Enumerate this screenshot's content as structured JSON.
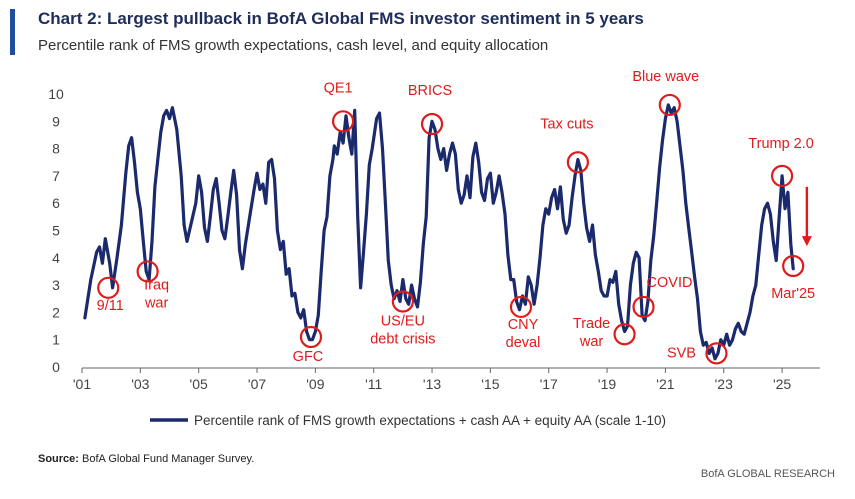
{
  "header": {
    "title": "Chart 2: Largest pullback in BofA Global FMS investor sentiment in 5 years",
    "subtitle": "Percentile rank of FMS growth expectations, cash level, and equity allocation"
  },
  "footer": {
    "source_label": "Source:",
    "source_text": "BofA Global Fund Manager Survey.",
    "brand": "BofA GLOBAL RESEARCH"
  },
  "colors": {
    "series": "#1a2a6c",
    "annotation": "#e01b1b",
    "accent_bar": "#1f4e9c"
  },
  "chart_data": {
    "type": "line",
    "title": "Chart 2: Largest pullback in BofA Global FMS investor sentiment in 5 years",
    "subtitle": "Percentile rank of FMS growth expectations, cash level, and equity allocation",
    "xlim": [
      2001.0,
      2026.3
    ],
    "ylim": [
      0,
      10
    ],
    "grid": false,
    "legend_position": "bottom",
    "x_tick_values": [
      2001,
      2003,
      2005,
      2007,
      2009,
      2011,
      2013,
      2015,
      2017,
      2019,
      2021,
      2023,
      2025
    ],
    "x_tick_labels": [
      "'01",
      "'03",
      "'05",
      "'07",
      "'09",
      "'11",
      "'13",
      "'15",
      "'17",
      "'19",
      "'21",
      "'23",
      "'25"
    ],
    "y_ticks": [
      0,
      1,
      2,
      3,
      4,
      5,
      6,
      7,
      8,
      9,
      10
    ],
    "series": [
      {
        "name": "Percentile rank of FMS growth expectations + cash AA + equity AA (scale 1-10)",
        "points": [
          [
            2001.1,
            1.8
          ],
          [
            2001.3,
            3.2
          ],
          [
            2001.5,
            4.2
          ],
          [
            2001.6,
            4.4
          ],
          [
            2001.7,
            3.8
          ],
          [
            2001.8,
            4.7
          ],
          [
            2001.95,
            3.8
          ],
          [
            2002.05,
            2.9
          ],
          [
            2002.2,
            4.0
          ],
          [
            2002.35,
            5.2
          ],
          [
            2002.5,
            7.1
          ],
          [
            2002.6,
            8.1
          ],
          [
            2002.7,
            8.4
          ],
          [
            2002.8,
            7.5
          ],
          [
            2002.9,
            6.4
          ],
          [
            2003.0,
            5.8
          ],
          [
            2003.1,
            4.6
          ],
          [
            2003.2,
            3.5
          ],
          [
            2003.3,
            3.2
          ],
          [
            2003.4,
            4.6
          ],
          [
            2003.5,
            6.6
          ],
          [
            2003.6,
            7.6
          ],
          [
            2003.7,
            8.6
          ],
          [
            2003.8,
            9.2
          ],
          [
            2003.9,
            9.4
          ],
          [
            2004.0,
            9.1
          ],
          [
            2004.1,
            9.5
          ],
          [
            2004.25,
            8.7
          ],
          [
            2004.4,
            7.0
          ],
          [
            2004.5,
            5.2
          ],
          [
            2004.6,
            4.6
          ],
          [
            2004.75,
            5.3
          ],
          [
            2004.9,
            6.0
          ],
          [
            2005.0,
            7.0
          ],
          [
            2005.1,
            6.4
          ],
          [
            2005.2,
            5.1
          ],
          [
            2005.3,
            4.6
          ],
          [
            2005.4,
            5.5
          ],
          [
            2005.5,
            6.5
          ],
          [
            2005.6,
            6.9
          ],
          [
            2005.7,
            6.0
          ],
          [
            2005.8,
            5.0
          ],
          [
            2005.9,
            4.7
          ],
          [
            2006.0,
            5.5
          ],
          [
            2006.1,
            6.4
          ],
          [
            2006.2,
            7.2
          ],
          [
            2006.3,
            6.3
          ],
          [
            2006.4,
            4.3
          ],
          [
            2006.5,
            3.6
          ],
          [
            2006.6,
            4.5
          ],
          [
            2006.75,
            5.5
          ],
          [
            2006.9,
            6.5
          ],
          [
            2007.0,
            7.1
          ],
          [
            2007.1,
            6.5
          ],
          [
            2007.2,
            6.7
          ],
          [
            2007.3,
            6.0
          ],
          [
            2007.4,
            7.5
          ],
          [
            2007.5,
            7.6
          ],
          [
            2007.6,
            6.9
          ],
          [
            2007.7,
            5.0
          ],
          [
            2007.8,
            4.3
          ],
          [
            2007.9,
            4.6
          ],
          [
            2008.0,
            3.4
          ],
          [
            2008.1,
            3.6
          ],
          [
            2008.2,
            2.6
          ],
          [
            2008.3,
            2.7
          ],
          [
            2008.4,
            2.0
          ],
          [
            2008.5,
            1.8
          ],
          [
            2008.6,
            2.1
          ],
          [
            2008.7,
            1.3
          ],
          [
            2008.8,
            1.0
          ],
          [
            2008.9,
            1.0
          ],
          [
            2009.0,
            1.3
          ],
          [
            2009.1,
            1.9
          ],
          [
            2009.2,
            3.5
          ],
          [
            2009.3,
            5.0
          ],
          [
            2009.4,
            5.5
          ],
          [
            2009.5,
            7.0
          ],
          [
            2009.6,
            7.6
          ],
          [
            2009.65,
            8.1
          ],
          [
            2009.75,
            7.8
          ],
          [
            2009.85,
            8.6
          ],
          [
            2009.95,
            8.2
          ],
          [
            2010.05,
            9.2
          ],
          [
            2010.15,
            8.4
          ],
          [
            2010.25,
            7.8
          ],
          [
            2010.35,
            9.4
          ],
          [
            2010.45,
            5.5
          ],
          [
            2010.55,
            2.9
          ],
          [
            2010.65,
            4.2
          ],
          [
            2010.75,
            5.6
          ],
          [
            2010.85,
            7.4
          ],
          [
            2010.95,
            8.0
          ],
          [
            2011.1,
            9.1
          ],
          [
            2011.2,
            9.3
          ],
          [
            2011.3,
            8.0
          ],
          [
            2011.4,
            6.0
          ],
          [
            2011.5,
            3.9
          ],
          [
            2011.6,
            3.0
          ],
          [
            2011.7,
            2.5
          ],
          [
            2011.8,
            2.8
          ],
          [
            2011.9,
            2.4
          ],
          [
            2012.0,
            3.2
          ],
          [
            2012.1,
            2.5
          ],
          [
            2012.2,
            2.3
          ],
          [
            2012.3,
            3.0
          ],
          [
            2012.4,
            2.5
          ],
          [
            2012.5,
            2.2
          ],
          [
            2012.6,
            3.1
          ],
          [
            2012.7,
            4.5
          ],
          [
            2012.8,
            5.5
          ],
          [
            2012.9,
            8.4
          ],
          [
            2013.0,
            9.0
          ],
          [
            2013.1,
            8.7
          ],
          [
            2013.2,
            8.0
          ],
          [
            2013.3,
            7.6
          ],
          [
            2013.4,
            8.0
          ],
          [
            2013.5,
            7.2
          ],
          [
            2013.6,
            7.8
          ],
          [
            2013.7,
            8.2
          ],
          [
            2013.8,
            7.8
          ],
          [
            2013.9,
            6.5
          ],
          [
            2014.0,
            6.0
          ],
          [
            2014.1,
            6.3
          ],
          [
            2014.2,
            7.0
          ],
          [
            2014.3,
            6.2
          ],
          [
            2014.4,
            7.7
          ],
          [
            2014.5,
            8.2
          ],
          [
            2014.6,
            7.5
          ],
          [
            2014.7,
            6.4
          ],
          [
            2014.8,
            6.1
          ],
          [
            2014.9,
            6.9
          ],
          [
            2015.0,
            7.1
          ],
          [
            2015.1,
            6.0
          ],
          [
            2015.2,
            6.4
          ],
          [
            2015.3,
            7.0
          ],
          [
            2015.4,
            6.4
          ],
          [
            2015.5,
            5.6
          ],
          [
            2015.6,
            4.1
          ],
          [
            2015.7,
            3.2
          ],
          [
            2015.8,
            3.2
          ],
          [
            2015.9,
            2.4
          ],
          [
            2016.0,
            2.1
          ],
          [
            2016.1,
            2.6
          ],
          [
            2016.2,
            2.3
          ],
          [
            2016.3,
            3.3
          ],
          [
            2016.4,
            3.0
          ],
          [
            2016.5,
            2.3
          ],
          [
            2016.6,
            3.0
          ],
          [
            2016.7,
            4.0
          ],
          [
            2016.8,
            5.2
          ],
          [
            2016.9,
            5.8
          ],
          [
            2017.0,
            5.6
          ],
          [
            2017.1,
            6.2
          ],
          [
            2017.2,
            6.5
          ],
          [
            2017.3,
            5.8
          ],
          [
            2017.4,
            6.6
          ],
          [
            2017.5,
            5.4
          ],
          [
            2017.6,
            4.9
          ],
          [
            2017.7,
            5.2
          ],
          [
            2017.8,
            6.2
          ],
          [
            2017.9,
            7.0
          ],
          [
            2018.0,
            7.6
          ],
          [
            2018.1,
            7.2
          ],
          [
            2018.2,
            6.0
          ],
          [
            2018.3,
            5.1
          ],
          [
            2018.4,
            4.6
          ],
          [
            2018.5,
            5.2
          ],
          [
            2018.6,
            4.1
          ],
          [
            2018.7,
            3.5
          ],
          [
            2018.8,
            2.8
          ],
          [
            2018.9,
            2.6
          ],
          [
            2019.0,
            2.6
          ],
          [
            2019.1,
            3.2
          ],
          [
            2019.2,
            3.1
          ],
          [
            2019.3,
            3.5
          ],
          [
            2019.4,
            2.3
          ],
          [
            2019.5,
            1.7
          ],
          [
            2019.6,
            1.3
          ],
          [
            2019.7,
            1.5
          ],
          [
            2019.8,
            3.0
          ],
          [
            2019.9,
            3.8
          ],
          [
            2020.0,
            4.2
          ],
          [
            2020.1,
            4.0
          ],
          [
            2020.2,
            1.9
          ],
          [
            2020.3,
            1.7
          ],
          [
            2020.4,
            2.4
          ],
          [
            2020.5,
            3.9
          ],
          [
            2020.6,
            4.8
          ],
          [
            2020.7,
            6.0
          ],
          [
            2020.8,
            7.3
          ],
          [
            2020.9,
            8.3
          ],
          [
            2021.0,
            9.1
          ],
          [
            2021.1,
            9.6
          ],
          [
            2021.2,
            9.3
          ],
          [
            2021.3,
            9.5
          ],
          [
            2021.4,
            9.0
          ],
          [
            2021.5,
            8.1
          ],
          [
            2021.6,
            7.2
          ],
          [
            2021.7,
            6.0
          ],
          [
            2021.8,
            5.1
          ],
          [
            2021.9,
            4.2
          ],
          [
            2022.0,
            3.3
          ],
          [
            2022.1,
            2.5
          ],
          [
            2022.2,
            1.3
          ],
          [
            2022.3,
            0.8
          ],
          [
            2022.4,
            0.9
          ],
          [
            2022.5,
            0.5
          ],
          [
            2022.6,
            0.7
          ],
          [
            2022.7,
            0.3
          ],
          [
            2022.8,
            0.5
          ],
          [
            2022.9,
            1.0
          ],
          [
            2023.0,
            0.8
          ],
          [
            2023.1,
            1.2
          ],
          [
            2023.2,
            0.8
          ],
          [
            2023.3,
            1.0
          ],
          [
            2023.4,
            1.4
          ],
          [
            2023.5,
            1.6
          ],
          [
            2023.6,
            1.3
          ],
          [
            2023.7,
            1.2
          ],
          [
            2023.8,
            1.6
          ],
          [
            2023.9,
            2.0
          ],
          [
            2024.0,
            2.6
          ],
          [
            2024.1,
            3.0
          ],
          [
            2024.2,
            4.1
          ],
          [
            2024.3,
            5.2
          ],
          [
            2024.4,
            5.8
          ],
          [
            2024.5,
            6.0
          ],
          [
            2024.6,
            5.6
          ],
          [
            2024.7,
            4.6
          ],
          [
            2024.8,
            3.9
          ],
          [
            2024.9,
            5.5
          ],
          [
            2025.0,
            7.0
          ],
          [
            2025.1,
            5.8
          ],
          [
            2025.2,
            6.4
          ],
          [
            2025.3,
            4.5
          ],
          [
            2025.38,
            3.6
          ]
        ]
      }
    ],
    "annotations": [
      {
        "text": "9/11",
        "x": 2001.9,
        "y": 2.9
      },
      {
        "text": "Iraq war",
        "x": 2003.25,
        "y": 3.5
      },
      {
        "text": "GFC",
        "x": 2008.85,
        "y": 1.1
      },
      {
        "text": "QE1",
        "x": 2009.95,
        "y": 9.0
      },
      {
        "text": "US/EU debt crisis",
        "x": 2012.0,
        "y": 2.4
      },
      {
        "text": "BRICS",
        "x": 2013.0,
        "y": 8.9
      },
      {
        "text": "CNY deval",
        "x": 2016.05,
        "y": 2.2
      },
      {
        "text": "Tax cuts",
        "x": 2018.0,
        "y": 7.5
      },
      {
        "text": "Trade war",
        "x": 2019.6,
        "y": 1.2
      },
      {
        "text": "COVID",
        "x": 2020.25,
        "y": 2.2
      },
      {
        "text": "Blue wave",
        "x": 2021.15,
        "y": 9.6
      },
      {
        "text": "SVB",
        "x": 2022.75,
        "y": 0.5
      },
      {
        "text": "Trump 2.0",
        "x": 2025.0,
        "y": 7.0
      },
      {
        "text": "Mar'25",
        "x": 2025.38,
        "y": 3.7
      }
    ]
  }
}
